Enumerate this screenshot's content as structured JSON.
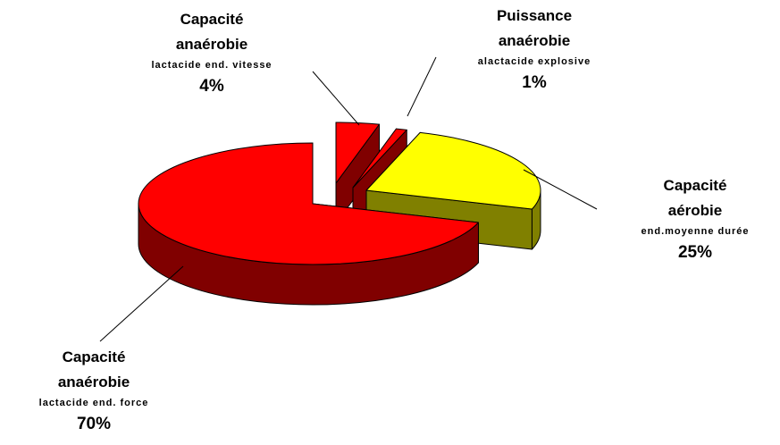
{
  "chart_data": {
    "type": "pie3d",
    "categories": [
      "Capacité\nanaérobie",
      "Puissance\nanaérobie",
      "Capacité aérobie",
      "Capacité\nanaérobie"
    ],
    "details": [
      "lactacide end. vitesse",
      "alactacide explosive",
      "end.moyenne durée",
      "lactacide end. force"
    ],
    "values": [
      4,
      1,
      25,
      70
    ],
    "value_labels": [
      "4%",
      "1%",
      "25%",
      "70%"
    ],
    "colors": [
      "#ff0000",
      "#ff0000",
      "#ffff00",
      "#ff0000"
    ]
  }
}
